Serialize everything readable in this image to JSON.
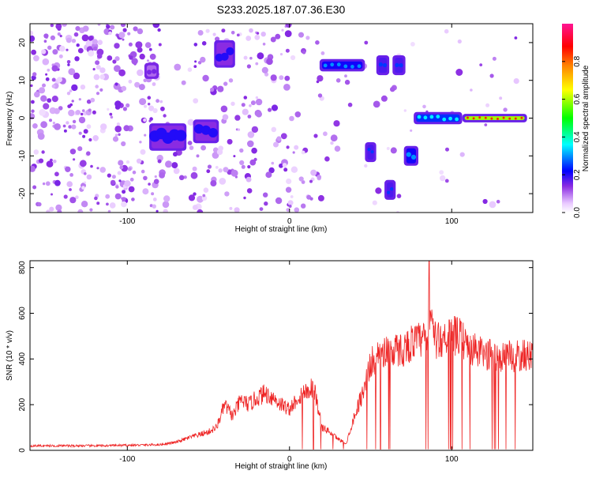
{
  "title": "S233.2025.187.07.36.E30",
  "chart_data": [
    {
      "type": "heatmap",
      "xlabel": "Height of straight line (km)",
      "ylabel": "Frequency (Hz)",
      "xlim": [
        -160,
        150
      ],
      "ylim": [
        -25,
        25
      ],
      "xticks": [
        -100,
        0,
        100
      ],
      "yticks": [
        -20,
        -10,
        0,
        10,
        20
      ],
      "colorbar": {
        "label": "Normalized spectral amplitude",
        "range": [
          0,
          1
        ],
        "ticks": [
          0.0,
          0.2,
          0.4,
          0.6,
          0.8
        ],
        "colors": [
          "#ffffff",
          "#e8c8ff",
          "#8a2be2",
          "#0000ff",
          "#00ffff",
          "#00ff00",
          "#ffff00",
          "#ff8000",
          "#ff0000",
          "#ff1493"
        ]
      },
      "features": [
        {
          "x": [
            20,
            45
          ],
          "y": [
            13,
            15
          ],
          "amplitude": 0.3
        },
        {
          "x": [
            78,
            105
          ],
          "y": [
            -1,
            1
          ],
          "amplitude": 0.35
        },
        {
          "x": [
            108,
            145
          ],
          "y": [
            -0.5,
            0.5
          ],
          "amplitude": 0.85
        },
        {
          "x": [
            -85,
            -65
          ],
          "y": [
            -8,
            -2
          ],
          "amplitude": 0.2
        },
        {
          "x": [
            -58,
            -45
          ],
          "y": [
            -6,
            -1
          ],
          "amplitude": 0.2
        },
        {
          "x": [
            -45,
            -35
          ],
          "y": [
            14,
            20
          ],
          "amplitude": 0.2
        },
        {
          "x": [
            -88,
            -82
          ],
          "y": [
            11,
            14
          ],
          "amplitude": 0.15
        },
        {
          "x": [
            48,
            52
          ],
          "y": [
            -11,
            -7
          ],
          "amplitude": 0.25
        },
        {
          "x": [
            60,
            64
          ],
          "y": [
            -21,
            -17
          ],
          "amplitude": 0.25
        },
        {
          "x": [
            72,
            78
          ],
          "y": [
            -12,
            -8
          ],
          "amplitude": 0.3
        },
        {
          "x": [
            55,
            60
          ],
          "y": [
            12,
            16
          ],
          "amplitude": 0.25
        },
        {
          "x": [
            65,
            70
          ],
          "y": [
            12,
            16
          ],
          "amplitude": 0.25
        }
      ]
    },
    {
      "type": "line",
      "xlabel": "Height of straight line (km)",
      "ylabel": "SNR (10 * v/v)",
      "xlim": [
        -160,
        150
      ],
      "ylim": [
        0,
        830
      ],
      "xticks": [
        -100,
        0,
        100
      ],
      "yticks": [
        0,
        200,
        400,
        600,
        800
      ],
      "color": "#ee2222",
      "x": [
        -160,
        -140,
        -120,
        -100,
        -80,
        -70,
        -60,
        -50,
        -45,
        -40,
        -35,
        -30,
        -25,
        -20,
        -15,
        -10,
        -5,
        0,
        5,
        10,
        15,
        20,
        25,
        30,
        35,
        40,
        45,
        50,
        55,
        60,
        65,
        70,
        75,
        80,
        85,
        88,
        90,
        95,
        100,
        105,
        110,
        120,
        130,
        140,
        150
      ],
      "y": [
        20,
        20,
        20,
        22,
        25,
        35,
        60,
        80,
        100,
        200,
        150,
        220,
        200,
        230,
        250,
        230,
        200,
        180,
        230,
        260,
        280,
        100,
        80,
        50,
        30,
        150,
        250,
        380,
        420,
        440,
        440,
        440,
        470,
        480,
        490,
        600,
        470,
        500,
        500,
        500,
        450,
        420,
        410,
        410,
        420
      ]
    }
  ]
}
